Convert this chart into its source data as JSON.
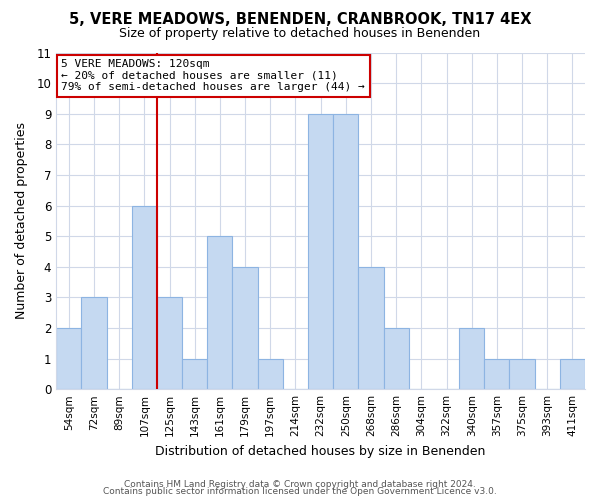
{
  "title": "5, VERE MEADOWS, BENENDEN, CRANBROOK, TN17 4EX",
  "subtitle": "Size of property relative to detached houses in Benenden",
  "xlabel": "Distribution of detached houses by size in Benenden",
  "ylabel": "Number of detached properties",
  "bar_labels": [
    "54sqm",
    "72sqm",
    "89sqm",
    "107sqm",
    "125sqm",
    "143sqm",
    "161sqm",
    "179sqm",
    "197sqm",
    "214sqm",
    "232sqm",
    "250sqm",
    "268sqm",
    "286sqm",
    "304sqm",
    "322sqm",
    "340sqm",
    "357sqm",
    "375sqm",
    "393sqm",
    "411sqm"
  ],
  "bar_values": [
    2,
    3,
    0,
    6,
    3,
    1,
    5,
    4,
    1,
    0,
    9,
    9,
    4,
    2,
    0,
    0,
    2,
    1,
    1,
    0,
    1
  ],
  "bar_color": "#c5d9f1",
  "bar_edge_color": "#8db4e2",
  "vline_x_index": 3,
  "vline_color": "#cc0000",
  "ylim": [
    0,
    11
  ],
  "yticks": [
    0,
    1,
    2,
    3,
    4,
    5,
    6,
    7,
    8,
    9,
    10,
    11
  ],
  "annotation_text": "5 VERE MEADOWS: 120sqm\n← 20% of detached houses are smaller (11)\n79% of semi-detached houses are larger (44) →",
  "annotation_box_color": "#ffffff",
  "annotation_box_edge": "#cc0000",
  "footnote1": "Contains HM Land Registry data © Crown copyright and database right 2024.",
  "footnote2": "Contains public sector information licensed under the Open Government Licence v3.0.",
  "background_color": "#ffffff",
  "grid_color": "#d0d8e8"
}
